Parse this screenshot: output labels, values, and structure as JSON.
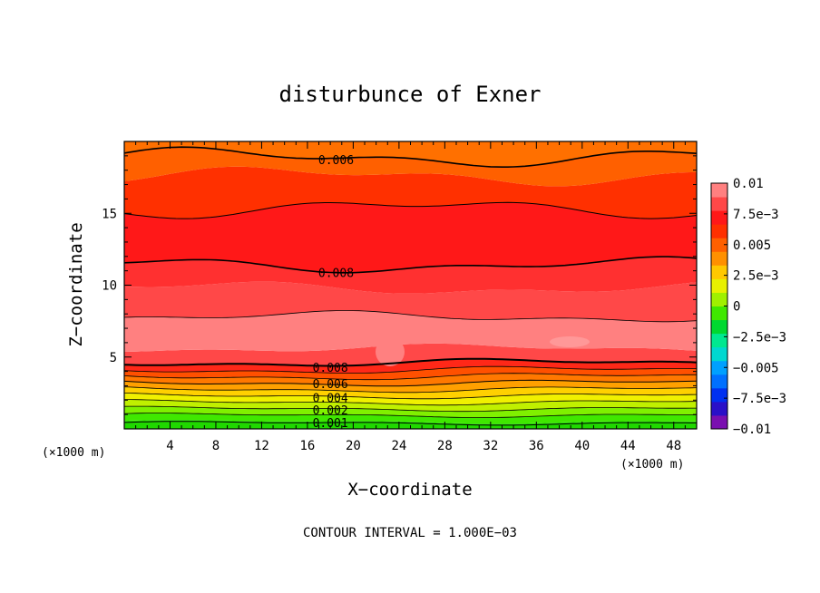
{
  "chart_data": {
    "type": "contour",
    "title": "disturbunce of Exner",
    "xlabel": "X−coordinate",
    "ylabel": "Z−coordinate",
    "x_unit": "(×1000 m)",
    "x_unit_right": "(×1000 m)",
    "xlim": [
      0,
      50
    ],
    "ylim": [
      0,
      20
    ],
    "x_ticks": [
      4,
      8,
      12,
      16,
      20,
      24,
      28,
      32,
      36,
      40,
      44,
      48
    ],
    "x_tick_labels": [
      "4",
      "8",
      "12",
      "16",
      "20",
      "24",
      "28",
      "32",
      "36",
      "40",
      "44",
      "48"
    ],
    "y_ticks": [
      5,
      10,
      15
    ],
    "y_tick_labels": [
      "5",
      "10",
      "15"
    ],
    "contour_interval_text": "CONTOUR INTERVAL = 1.000E−03",
    "colorbar": {
      "range": [
        -0.01,
        0.01
      ],
      "tick_values": [
        0.01,
        0.0075,
        0.005,
        0.0025,
        0,
        -0.0025,
        -0.005,
        -0.0075,
        -0.01
      ],
      "tick_labels": [
        "0.01",
        "7.5e−3",
        "0.005",
        "2.5e−3",
        "0",
        "−2.5e−3",
        "−0.005",
        "−7.5e−3",
        "−0.01"
      ],
      "colors": [
        "#7a0fb0",
        "#2a10c8",
        "#0030f0",
        "#0070ff",
        "#00a0ff",
        "#00d8d0",
        "#00e890",
        "#00d830",
        "#40e800",
        "#a0f000",
        "#e8f000",
        "#ffc800",
        "#ff9000",
        "#ff6000",
        "#ff3000",
        "#ff1818",
        "#ff4848",
        "#ff8080"
      ]
    },
    "contour_labels": [
      {
        "text": "0.006",
        "x": 18.5,
        "z": 18.8
      },
      {
        "text": "0.008",
        "x": 18.5,
        "z": 11.4
      },
      {
        "text": "0.008",
        "x": 18.0,
        "z": 4.5
      },
      {
        "text": "0.006",
        "x": 18.0,
        "z": 3.3
      },
      {
        "text": "0.004",
        "x": 18.0,
        "z": 2.2
      },
      {
        "text": "0.002",
        "x": 18.0,
        "z": 1.3
      },
      {
        "text": "0.001",
        "x": 18.0,
        "z": 0.4
      }
    ],
    "bands": [
      {
        "lower": -1,
        "upper": 0.5,
        "color": "#20d800"
      },
      {
        "lower": 0.5,
        "upper": 0.95,
        "color": "#40e800"
      },
      {
        "lower": 0.95,
        "upper": 1.4,
        "color": "#80f000"
      },
      {
        "lower": 1.4,
        "upper": 1.85,
        "color": "#c0f000"
      },
      {
        "lower": 1.85,
        "upper": 2.3,
        "color": "#f0f000"
      },
      {
        "lower": 2.3,
        "upper": 2.75,
        "color": "#ffd000"
      },
      {
        "lower": 2.75,
        "upper": 3.2,
        "color": "#ffa000"
      },
      {
        "lower": 3.2,
        "upper": 3.65,
        "color": "#ff7800"
      },
      {
        "lower": 3.65,
        "upper": 4.1,
        "color": "#ff5000"
      },
      {
        "lower": 4.1,
        "upper": 4.6,
        "color": "#ff2818"
      },
      {
        "lower": 4.6,
        "upper": 5.6,
        "color": "#ff4848"
      },
      {
        "lower": 5.6,
        "upper": 7.8,
        "color": "#ff8080"
      },
      {
        "lower": 7.8,
        "upper": 9.8,
        "color": "#ff4848"
      },
      {
        "lower": 9.8,
        "upper": 11.4,
        "color": "#ff3030"
      },
      {
        "lower": 11.4,
        "upper": 15.3,
        "color": "#ff1818"
      },
      {
        "lower": 15.3,
        "upper": 17.6,
        "color": "#ff3000"
      },
      {
        "lower": 17.6,
        "upper": 18.9,
        "color": "#ff6000"
      },
      {
        "lower": 18.9,
        "upper": 21,
        "color": "#ff7000"
      }
    ],
    "contour_lines": [
      {
        "level": 0.4,
        "width": 1.0
      },
      {
        "level": 0.95,
        "width": 0.8
      },
      {
        "level": 1.4,
        "width": 0.8
      },
      {
        "level": 1.85,
        "width": 0.8
      },
      {
        "level": 2.3,
        "width": 0.8
      },
      {
        "level": 2.75,
        "width": 0.8
      },
      {
        "level": 3.2,
        "width": 1.0
      },
      {
        "level": 3.65,
        "width": 0.8
      },
      {
        "level": 4.1,
        "width": 0.8
      },
      {
        "level": 4.6,
        "width": 2.0
      },
      {
        "level": 7.8,
        "width": 0.8
      },
      {
        "level": 11.4,
        "width": 1.6
      },
      {
        "level": 15.3,
        "width": 1.0
      },
      {
        "level": 18.9,
        "width": 1.6
      }
    ]
  }
}
